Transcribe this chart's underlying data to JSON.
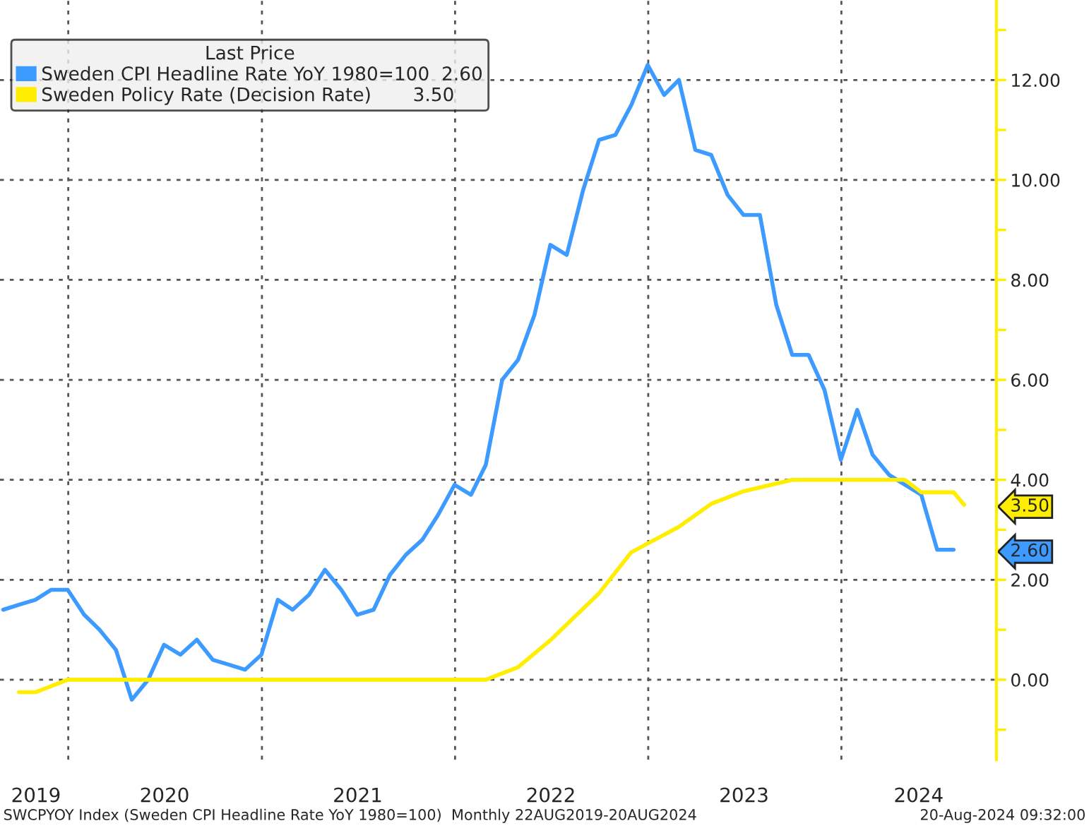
{
  "chart_data": {
    "type": "line",
    "legend_title": "Last Price",
    "series": [
      {
        "name": "Sweden CPI Headline Rate YoY 1980=100  2.60",
        "color": "#3d9bff",
        "x": [
          "2019-08-31",
          "2019-09-30",
          "2019-10-31",
          "2019-11-30",
          "2019-12-31",
          "2020-01-31",
          "2020-02-29",
          "2020-03-31",
          "2020-04-30",
          "2020-05-31",
          "2020-06-30",
          "2020-07-31",
          "2020-08-31",
          "2020-09-30",
          "2020-10-31",
          "2020-11-30",
          "2020-12-31",
          "2021-01-31",
          "2021-02-28",
          "2021-03-31",
          "2021-04-30",
          "2021-05-31",
          "2021-06-30",
          "2021-07-31",
          "2021-08-31",
          "2021-09-30",
          "2021-10-31",
          "2021-11-30",
          "2021-12-31",
          "2022-01-31",
          "2022-02-28",
          "2022-03-31",
          "2022-04-30",
          "2022-05-31",
          "2022-06-30",
          "2022-07-31",
          "2022-08-31",
          "2022-09-30",
          "2022-10-31",
          "2022-11-30",
          "2022-12-31",
          "2023-01-31",
          "2023-02-28",
          "2023-03-31",
          "2023-04-30",
          "2023-05-31",
          "2023-06-30",
          "2023-07-31",
          "2023-08-31",
          "2023-09-30",
          "2023-10-31",
          "2023-11-30",
          "2023-12-31",
          "2024-01-31",
          "2024-02-29",
          "2024-03-31",
          "2024-04-30",
          "2024-05-31",
          "2024-06-30",
          "2024-07-31"
        ],
        "values": [
          1.4,
          1.5,
          1.6,
          1.8,
          1.8,
          1.3,
          1.0,
          0.6,
          -0.4,
          0.0,
          0.7,
          0.5,
          0.8,
          0.4,
          0.3,
          0.2,
          0.5,
          1.6,
          1.4,
          1.7,
          2.2,
          1.8,
          1.3,
          1.4,
          2.1,
          2.5,
          2.8,
          3.3,
          3.9,
          3.7,
          4.3,
          6.0,
          6.4,
          7.3,
          8.7,
          8.5,
          9.8,
          10.8,
          10.9,
          11.5,
          12.3,
          11.7,
          12.0,
          10.6,
          10.5,
          9.7,
          9.3,
          9.3,
          7.5,
          6.5,
          6.5,
          5.8,
          4.4,
          5.4,
          4.5,
          4.1,
          3.9,
          3.7,
          2.6,
          2.6
        ]
      },
      {
        "name": "Sweden Policy Rate (Decision Rate)       3.50",
        "color": "#ffee00",
        "x": [
          "2019-09-30",
          "2019-10-31",
          "2019-12-31",
          "2022-02-28",
          "2022-04-30",
          "2022-06-30",
          "2022-09-30",
          "2022-11-30",
          "2023-02-28",
          "2023-04-30",
          "2023-06-30",
          "2023-09-30",
          "2024-04-30",
          "2024-05-31",
          "2024-07-31",
          "2024-08-20"
        ],
        "values": [
          -0.25,
          -0.25,
          0.0,
          0.0,
          0.25,
          0.79,
          1.73,
          2.55,
          3.06,
          3.52,
          3.77,
          4.0,
          4.0,
          3.75,
          3.75,
          3.5
        ]
      }
    ],
    "xlim": [
      "2019-08-25",
      "2024-10-20"
    ],
    "xticks": [
      {
        "value": "2019-11-01",
        "label": "2019"
      },
      {
        "value": "2020-01-01",
        "label": null
      },
      {
        "value": "2020-07-01",
        "label": "2020"
      },
      {
        "value": "2021-01-01",
        "label": null
      },
      {
        "value": "2021-07-01",
        "label": "2021"
      },
      {
        "value": "2022-01-01",
        "label": null
      },
      {
        "value": "2022-07-01",
        "label": "2022"
      },
      {
        "value": "2023-01-01",
        "label": null
      },
      {
        "value": "2023-07-01",
        "label": "2023"
      },
      {
        "value": "2024-01-01",
        "label": null
      },
      {
        "value": "2024-05-26",
        "label": "2024"
      }
    ],
    "ylim": [
      -1.6,
      13.6
    ],
    "yticks": [
      {
        "value": -1,
        "label": null
      },
      {
        "value": 0,
        "label": "0.00"
      },
      {
        "value": 1,
        "label": null
      },
      {
        "value": 2,
        "label": "2.00"
      },
      {
        "value": 2.6,
        "label": "2.60"
      },
      {
        "value": 3,
        "label": null
      },
      {
        "value": 3.5,
        "label": "3.50"
      },
      {
        "value": 4,
        "label": "4.00"
      },
      {
        "value": 5,
        "label": null
      },
      {
        "value": 6,
        "label": "6.00"
      },
      {
        "value": 7,
        "label": null
      },
      {
        "value": 8,
        "label": "8.00"
      },
      {
        "value": 9,
        "label": null
      },
      {
        "value": 10,
        "label": "10.00"
      },
      {
        "value": 11,
        "label": null
      },
      {
        "value": 12,
        "label": "12.00"
      },
      {
        "value": 13,
        "label": null
      }
    ],
    "grid": true,
    "legend": "top left",
    "annotations": [
      "SWCPYOY Index (Sweden CPI Headline Rate YoY 1980=100)  Monthly 22AUG2019-20AUG2024",
      "20-Aug-2024 09:32:00"
    ]
  }
}
